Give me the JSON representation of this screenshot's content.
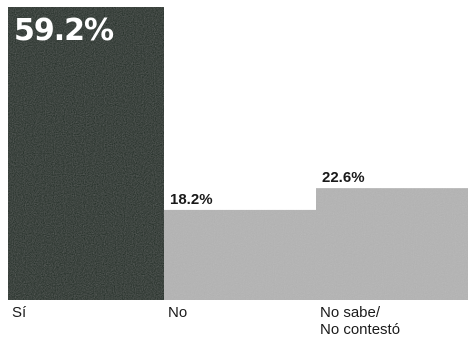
{
  "chart_data": {
    "type": "bar",
    "categories": [
      "Sí",
      "No",
      "No sabe/\nNo contestó"
    ],
    "values": [
      59.2,
      18.2,
      22.6
    ],
    "value_labels": [
      "59.2%",
      "18.2%",
      "22.6%"
    ],
    "ylim": [
      0,
      59.2
    ],
    "grid": false,
    "legend": "none",
    "colors": [
      "#16261f",
      "#b4b4b4",
      "#b4b4b4"
    ]
  }
}
